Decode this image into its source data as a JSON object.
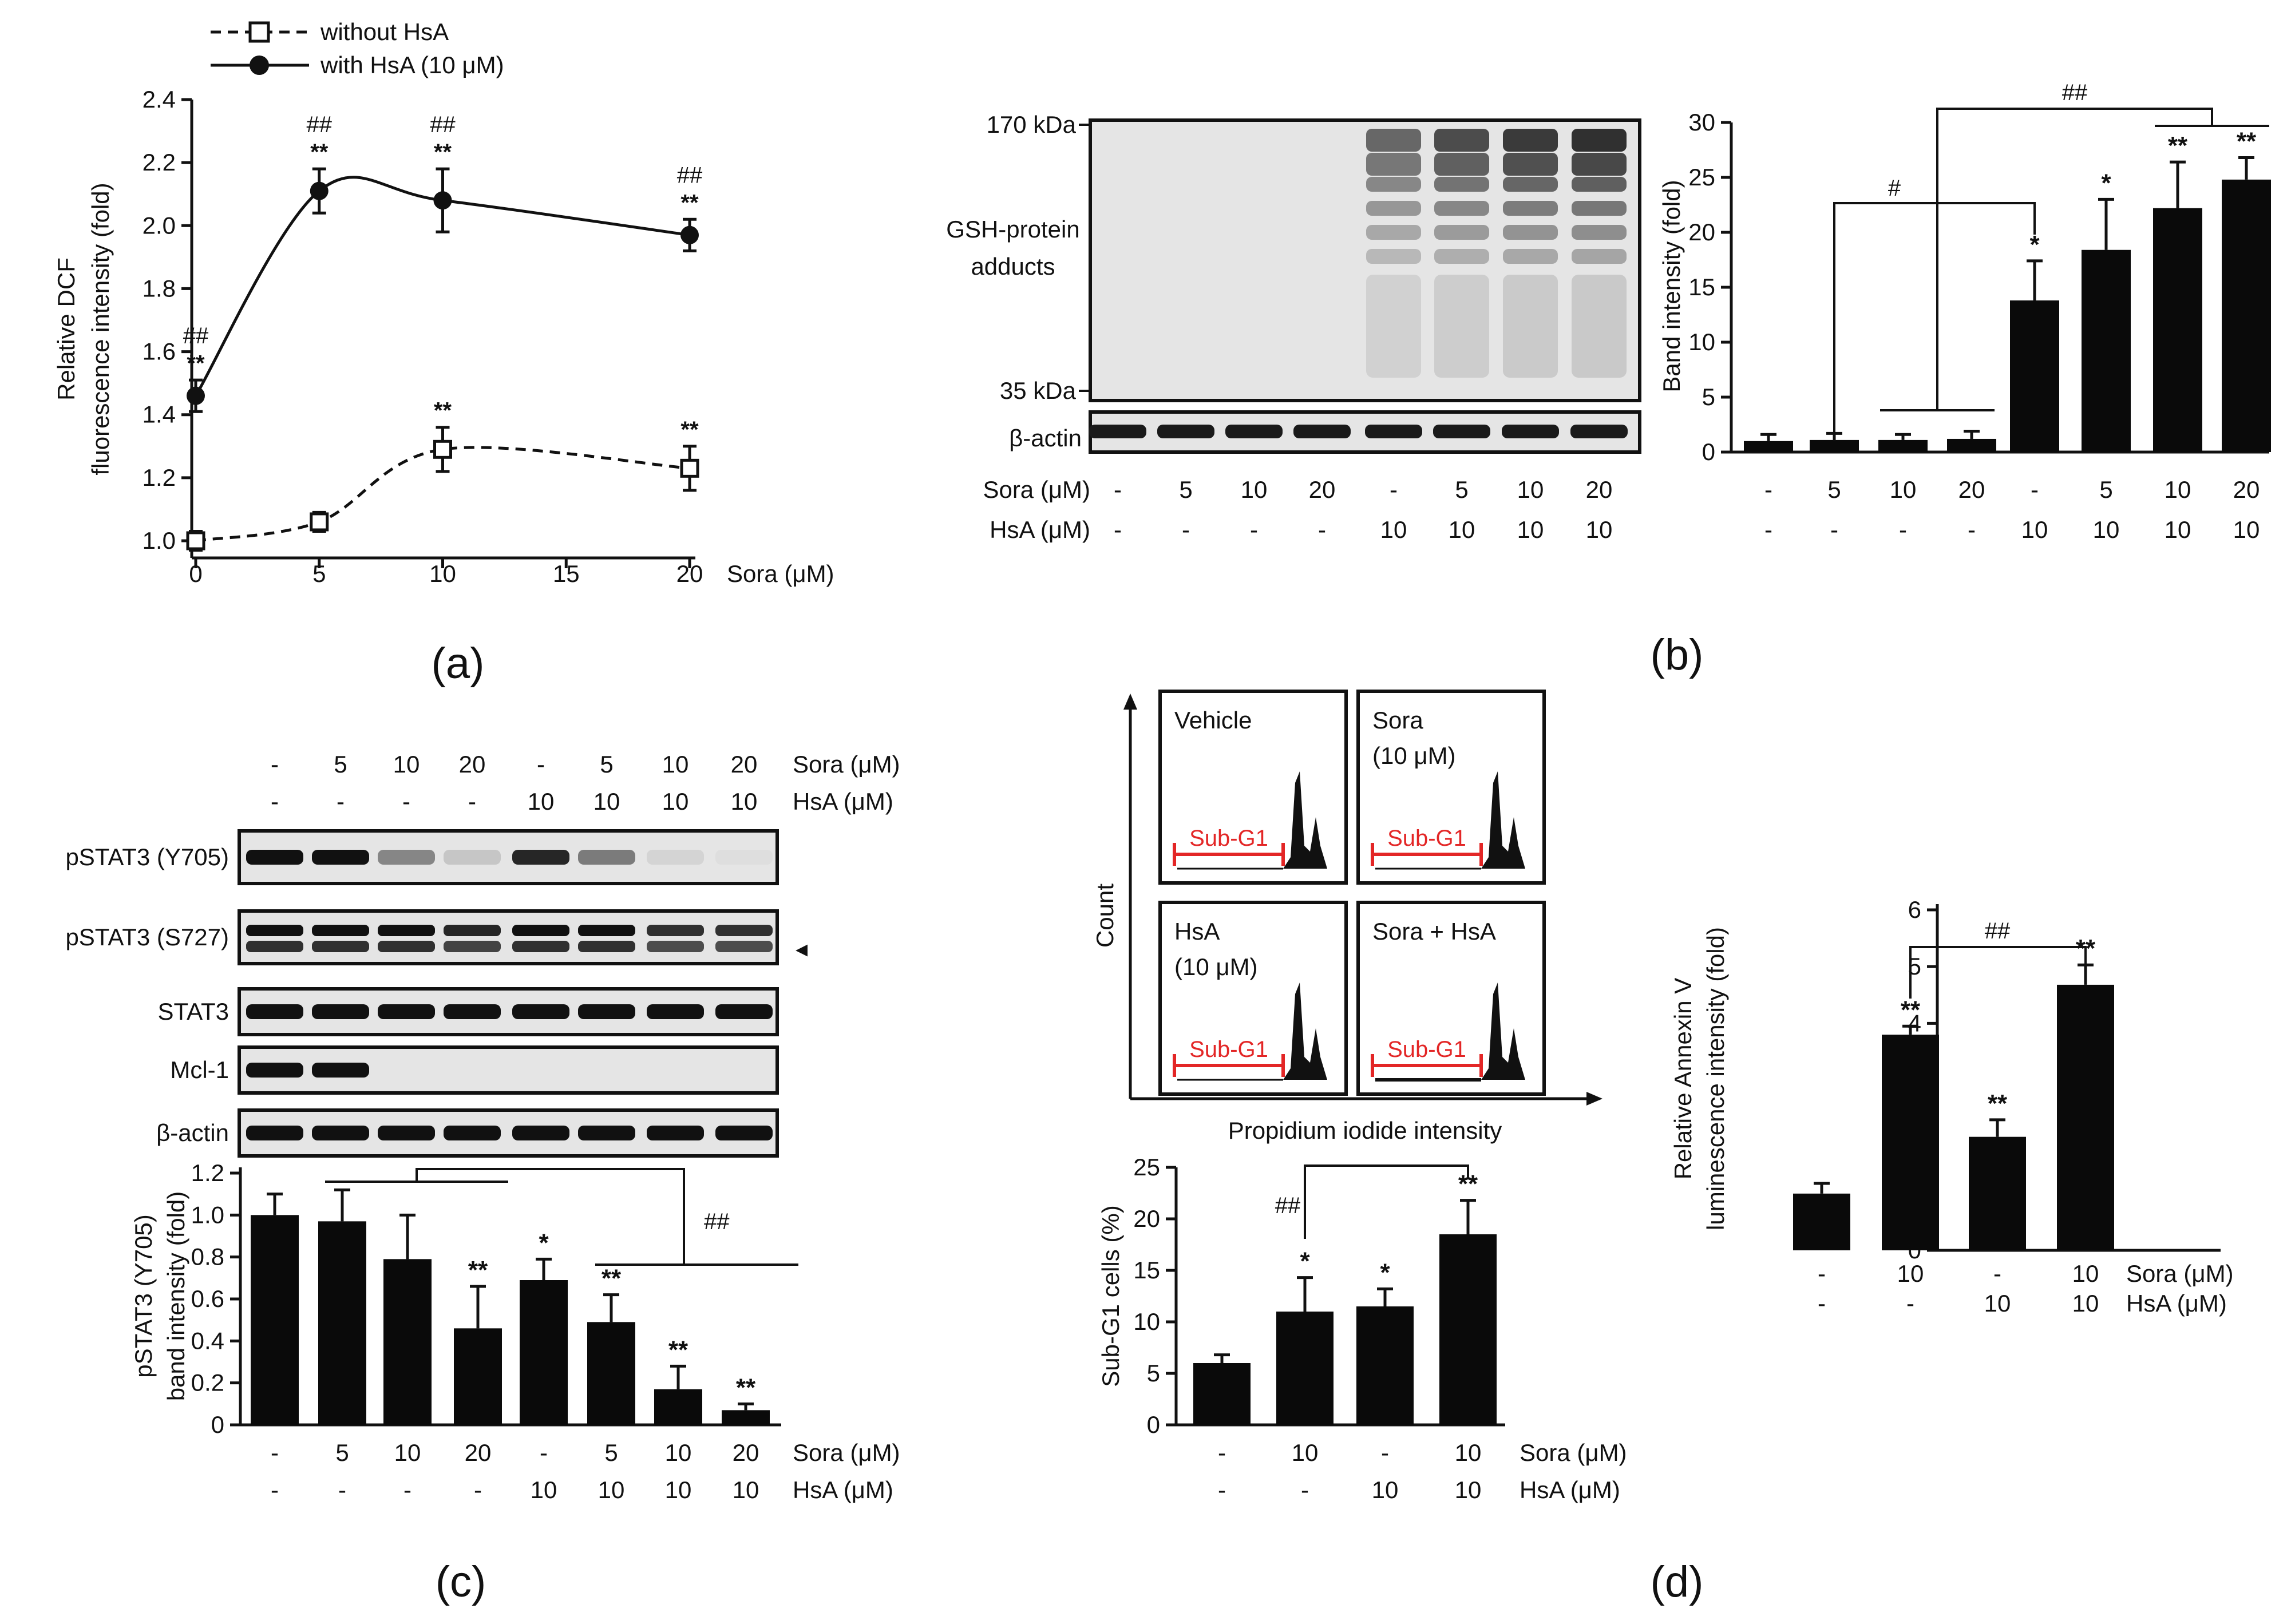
{
  "panel_labels": {
    "a": "(a)",
    "b": "(b)",
    "c": "(c)",
    "d": "(d)"
  },
  "colors": {
    "bar": "#0a0a0a",
    "subg1": "#e32626",
    "blot_bg": "#e6e6e6"
  },
  "common": {
    "sora_label": "Sora (μM)",
    "hsa_label": "HsA (μM)",
    "sora8": [
      "-",
      "5",
      "10",
      "20",
      "-",
      "5",
      "10",
      "20"
    ],
    "hsa8": [
      "-",
      "-",
      "-",
      "-",
      "10",
      "10",
      "10",
      "10"
    ],
    "sora4": [
      "-",
      "10",
      "-",
      "10"
    ],
    "hsa4": [
      "-",
      "-",
      "10",
      "10"
    ]
  },
  "chart_data": [
    {
      "id": "a",
      "type": "line",
      "ylabel_lines": [
        "Relative DCF",
        "fluorescence intensity (fold)"
      ],
      "xlabel": "Sora (μM)",
      "ylim": [
        1.0,
        2.4
      ],
      "yticks": [
        "1.0",
        "1.2",
        "1.4",
        "1.6",
        "1.8",
        "2.0",
        "2.2",
        "2.4"
      ],
      "xlim": [
        0,
        20
      ],
      "xticks": [
        "0",
        "5",
        "10",
        "15",
        "20"
      ],
      "legend": [
        "without HsA",
        "with HsA (10 μM)"
      ],
      "series": [
        {
          "name": "without HsA",
          "style": "dashed-open-square",
          "x": [
            0,
            5,
            10,
            20
          ],
          "y": [
            1.0,
            1.06,
            1.29,
            1.23
          ],
          "err": [
            0.03,
            0.03,
            0.07,
            0.07
          ],
          "labels": [
            [],
            [],
            [
              "**"
            ],
            [
              "**"
            ]
          ]
        },
        {
          "name": "with HsA (10 μM)",
          "style": "solid-filled-circle",
          "x": [
            0,
            5,
            10,
            20
          ],
          "y": [
            1.46,
            2.11,
            2.08,
            1.97
          ],
          "err": [
            0.05,
            0.07,
            0.1,
            0.05
          ],
          "labels": [
            [
              "##",
              "**"
            ],
            [
              "##",
              "**"
            ],
            [
              "##",
              "**"
            ],
            [
              "##",
              "**"
            ]
          ]
        }
      ]
    },
    {
      "id": "b",
      "type": "bar",
      "ylabel": "Band intensity (fold)",
      "ylim": [
        0,
        30
      ],
      "yticks": [
        "0",
        "5",
        "10",
        "15",
        "20",
        "25",
        "30"
      ],
      "values": [
        1.0,
        1.1,
        1.1,
        1.2,
        13.8,
        18.4,
        22.2,
        24.8
      ],
      "err": [
        0.6,
        0.6,
        0.5,
        0.7,
        3.6,
        4.6,
        4.2,
        2.0
      ],
      "marks": [
        "",
        "",
        "",
        "",
        "*",
        "*",
        "**",
        "**"
      ],
      "sig": [
        "#",
        "##"
      ]
    },
    {
      "id": "c",
      "type": "bar",
      "ylabel_lines": [
        "pSTAT3 (Y705)",
        "band intensity (fold)"
      ],
      "ylim": [
        0,
        1.2
      ],
      "yticks": [
        "0",
        "0.2",
        "0.4",
        "0.6",
        "0.8",
        "1.0",
        "1.2"
      ],
      "values": [
        1.0,
        0.97,
        0.79,
        0.46,
        0.69,
        0.49,
        0.17,
        0.07
      ],
      "err": [
        0.1,
        0.15,
        0.21,
        0.2,
        0.1,
        0.13,
        0.11,
        0.03
      ],
      "marks": [
        "",
        "",
        "",
        "**",
        "*",
        "**",
        "**",
        "**"
      ],
      "sig": [
        "##"
      ]
    },
    {
      "id": "d1",
      "type": "bar",
      "ylabel": "Sub-G1 cells (%)",
      "ylim": [
        0,
        25
      ],
      "yticks": [
        "0",
        "5",
        "10",
        "15",
        "20",
        "25"
      ],
      "values": [
        6.0,
        11.0,
        11.5,
        18.5
      ],
      "err": [
        0.8,
        3.3,
        1.7,
        3.3
      ],
      "marks": [
        "",
        "*",
        "*",
        "**"
      ],
      "sig": [
        "##"
      ]
    },
    {
      "id": "d2",
      "type": "bar",
      "ylabel_lines": [
        "Relative Annexin V",
        "luminescence intensity (fold)"
      ],
      "ylim": [
        0,
        6
      ],
      "yticks": [
        "0",
        "1",
        "2",
        "3",
        "4",
        "5",
        "6"
      ],
      "values": [
        1.0,
        3.8,
        2.0,
        4.68
      ],
      "err": [
        0.18,
        0.15,
        0.3,
        0.35
      ],
      "marks": [
        "",
        "**",
        "**",
        "**"
      ],
      "sig": [
        "##"
      ]
    }
  ],
  "panel_b_blot": {
    "mw_top": "170 kDa",
    "mw_bottom": "35 kDa",
    "label_lines": [
      "GSH-protein",
      "adducts"
    ],
    "actin": "β-actin"
  },
  "panel_c_blot": {
    "rows": [
      "pSTAT3 (Y705)",
      "pSTAT3 (S727)",
      "STAT3",
      "Mcl-1",
      "β-actin"
    ],
    "arrow": "◂"
  },
  "panel_d_flow": {
    "ylabel": "Count",
    "xlabel": "Propidium iodide intensity",
    "subg1": "Sub-G1",
    "boxes": [
      {
        "lines": [
          "Vehicle"
        ]
      },
      {
        "lines": [
          "Sora",
          "(10 μM)"
        ]
      },
      {
        "lines": [
          "HsA",
          "(10 μM)"
        ]
      },
      {
        "lines": [
          "Sora + HsA"
        ]
      }
    ]
  }
}
